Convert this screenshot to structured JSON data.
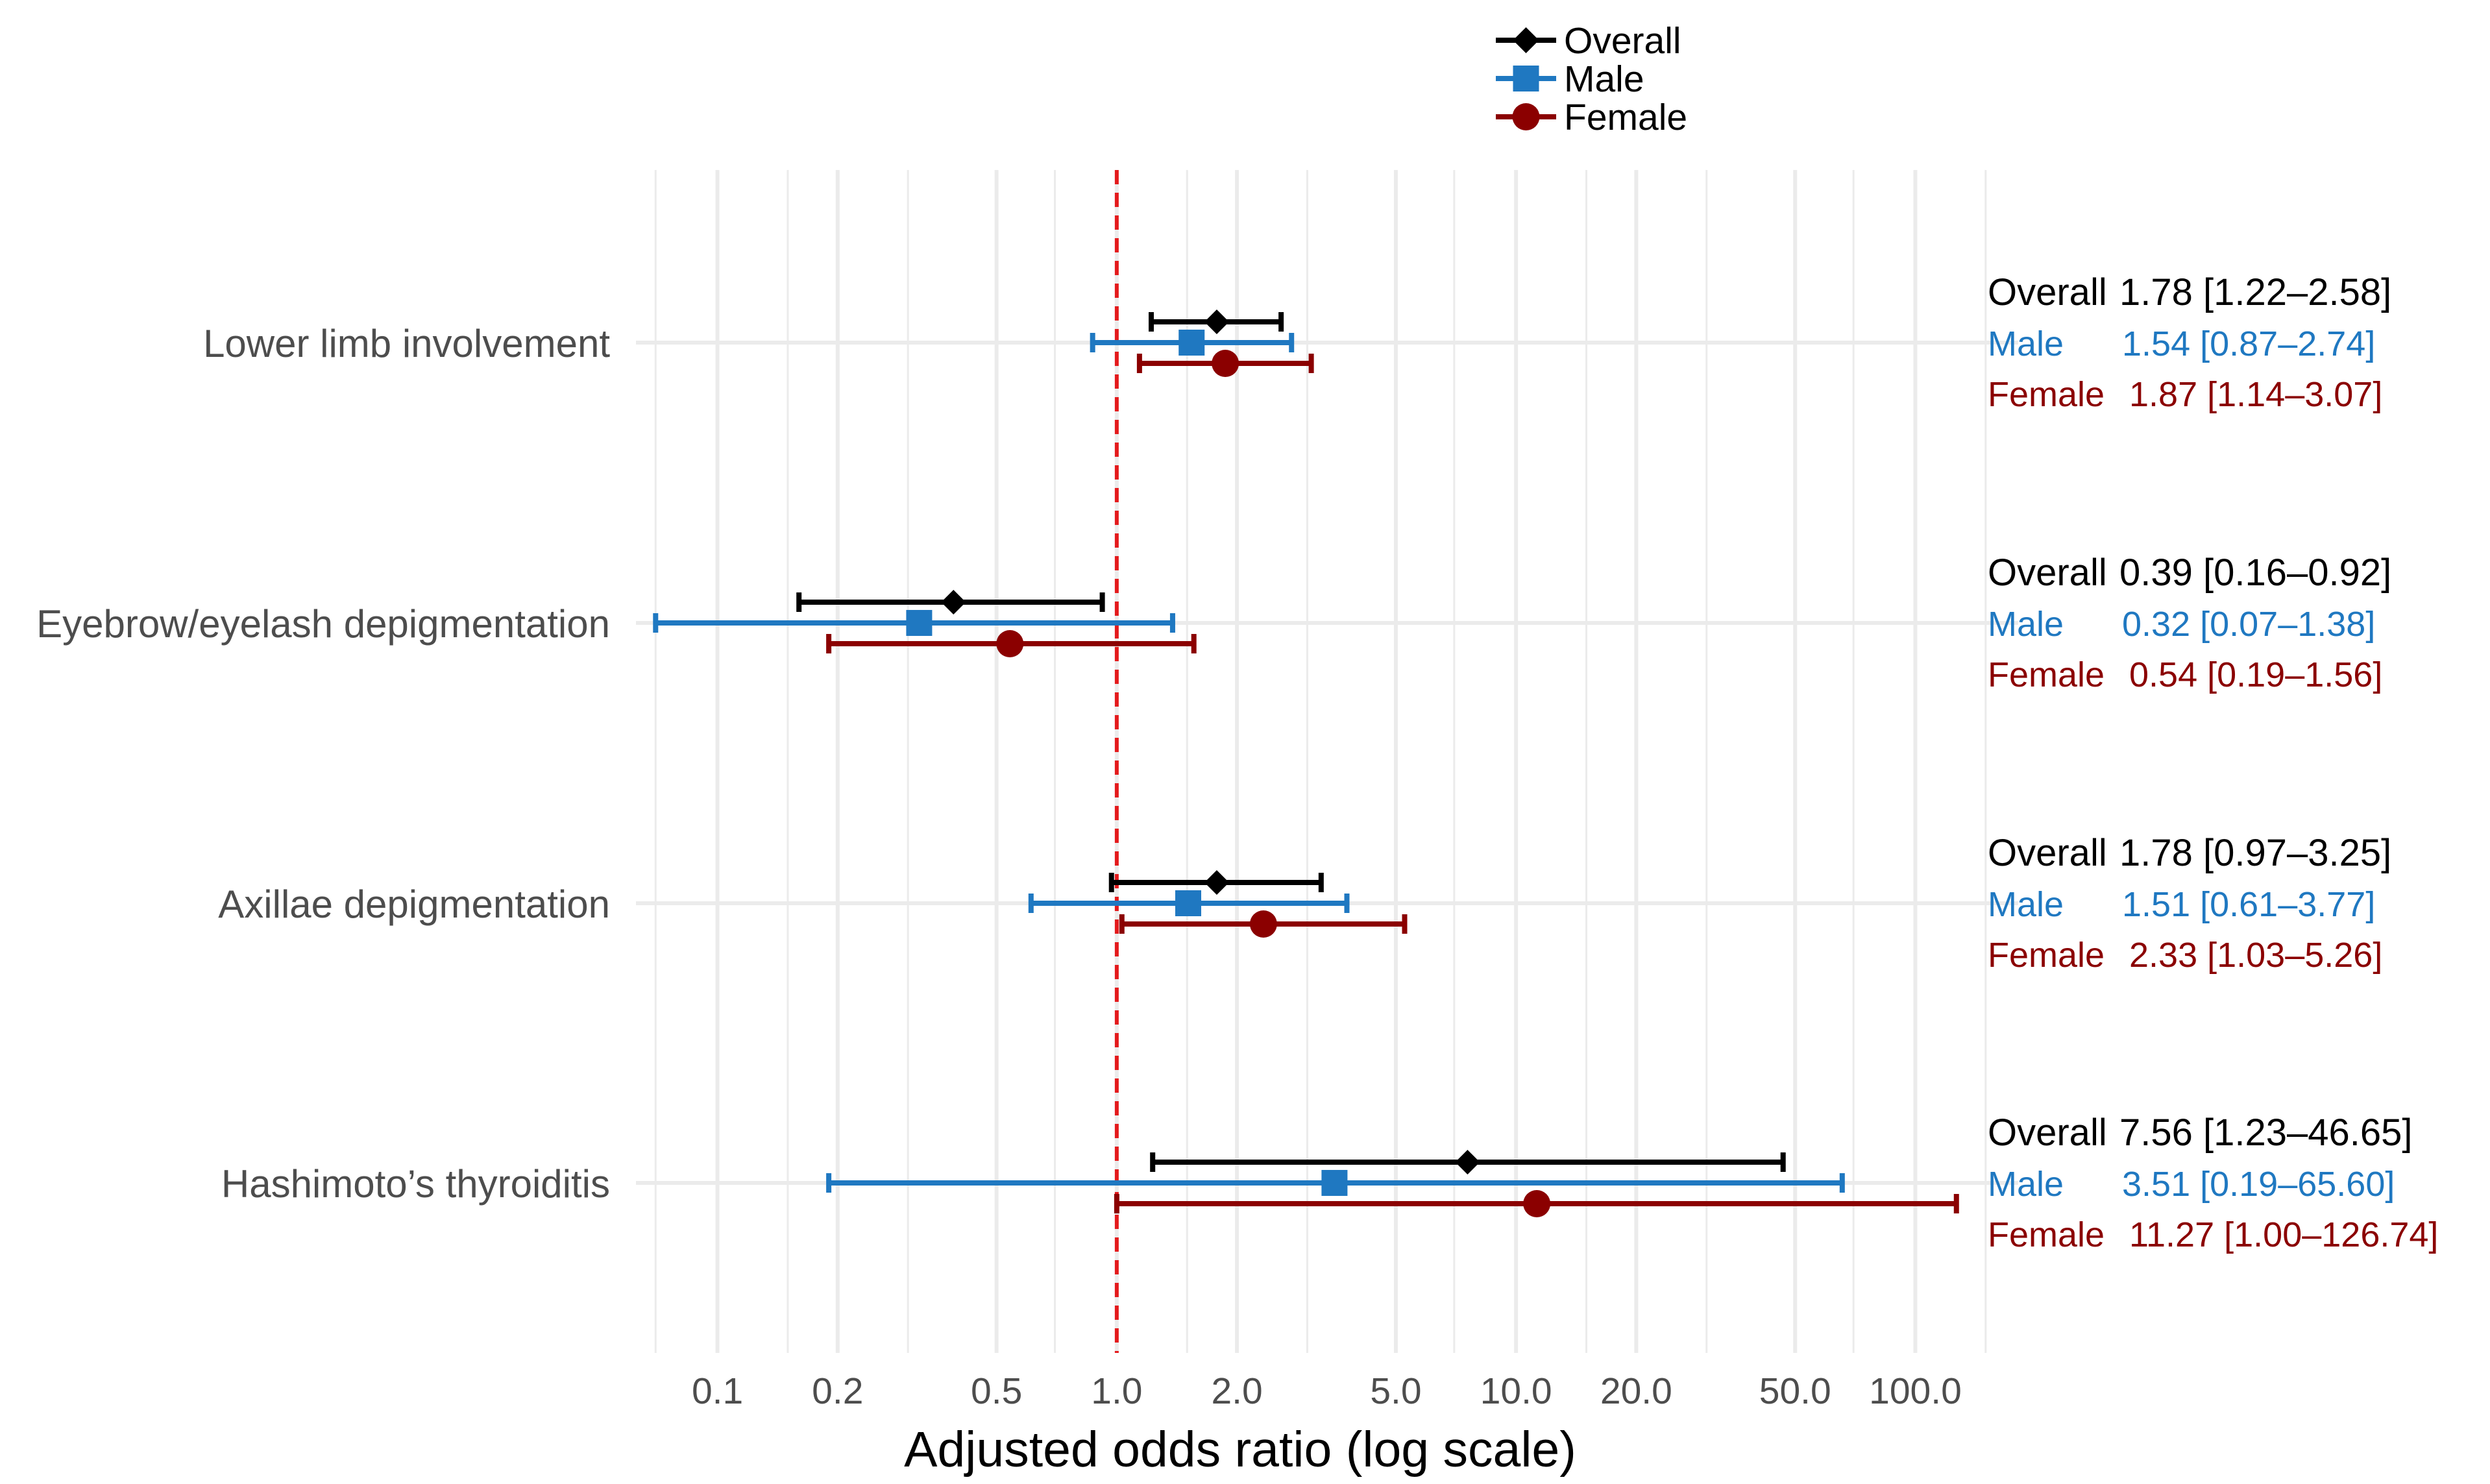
{
  "chart_data": {
    "type": "forest",
    "xlabel": "Adjusted odds ratio (log scale)",
    "x_scale": "log",
    "xlim": [
      0.0625,
      181
    ],
    "x_ticks": [
      0.1,
      0.2,
      0.5,
      1.0,
      2.0,
      5.0,
      10.0,
      20.0,
      50.0,
      100.0
    ],
    "x_tick_labels": [
      "0.1",
      "0.2",
      "0.5",
      "1.0",
      "2.0",
      "5.0",
      "10.0",
      "20.0",
      "50.0",
      "100.0"
    ],
    "minor_ticks": [
      0.07,
      0.15,
      0.3,
      0.7,
      1.5,
      3.0,
      7.0,
      15.0,
      30.0,
      70.0,
      150.0
    ],
    "reference_line": 1.0,
    "reference_color": "#e41a1c",
    "legend": {
      "position": "top-center",
      "entries": [
        {
          "name": "Overall",
          "color": "#000000",
          "marker": "diamond"
        },
        {
          "name": "Male",
          "color": "#1f78c1",
          "marker": "square"
        },
        {
          "name": "Female",
          "color": "#8b0000",
          "marker": "circle"
        }
      ]
    },
    "categories": [
      "Lower limb involvement",
      "Eyebrow/eyelash depigmentation",
      "Axillae depigmentation",
      "Hashimoto’s thyroiditis"
    ],
    "series": [
      {
        "name": "Overall",
        "color": "#000000",
        "marker": "diamond",
        "points": [
          {
            "or": 1.78,
            "lo": 1.22,
            "hi": 2.58,
            "label_name": "Overall",
            "label_value": "1.78 [1.22–2.58]"
          },
          {
            "or": 0.39,
            "lo": 0.16,
            "hi": 0.92,
            "label_name": "Overall",
            "label_value": "0.39 [0.16–0.92]"
          },
          {
            "or": 1.78,
            "lo": 0.97,
            "hi": 3.25,
            "label_name": "Overall",
            "label_value": "1.78 [0.97–3.25]"
          },
          {
            "or": 7.56,
            "lo": 1.23,
            "hi": 46.65,
            "label_name": "Overall",
            "label_value": "7.56 [1.23–46.65]"
          }
        ]
      },
      {
        "name": "Male",
        "color": "#1f78c1",
        "marker": "square",
        "points": [
          {
            "or": 1.54,
            "lo": 0.87,
            "hi": 2.74,
            "label_name": "Male",
            "label_value": "1.54 [0.87–2.74]"
          },
          {
            "or": 0.32,
            "lo": 0.07,
            "hi": 1.38,
            "label_name": "Male",
            "label_value": "0.32 [0.07–1.38]"
          },
          {
            "or": 1.51,
            "lo": 0.61,
            "hi": 3.77,
            "label_name": "Male",
            "label_value": "1.51 [0.61–3.77]"
          },
          {
            "or": 3.51,
            "lo": 0.19,
            "hi": 65.6,
            "label_name": "Male",
            "label_value": "3.51 [0.19–65.60]"
          }
        ]
      },
      {
        "name": "Female",
        "color": "#8b0000",
        "marker": "circle",
        "points": [
          {
            "or": 1.87,
            "lo": 1.14,
            "hi": 3.07,
            "label_name": "Female",
            "label_value": "1.87 [1.14–3.07]"
          },
          {
            "or": 0.54,
            "lo": 0.19,
            "hi": 1.56,
            "label_name": "Female",
            "label_value": "0.54 [0.19–1.56]"
          },
          {
            "or": 2.33,
            "lo": 1.03,
            "hi": 5.26,
            "label_name": "Female",
            "label_value": "2.33 [1.03–5.26]"
          },
          {
            "or": 11.27,
            "lo": 1.0,
            "hi": 126.74,
            "label_name": "Female",
            "label_value": "11.27 [1.00–126.74]"
          }
        ]
      }
    ]
  }
}
